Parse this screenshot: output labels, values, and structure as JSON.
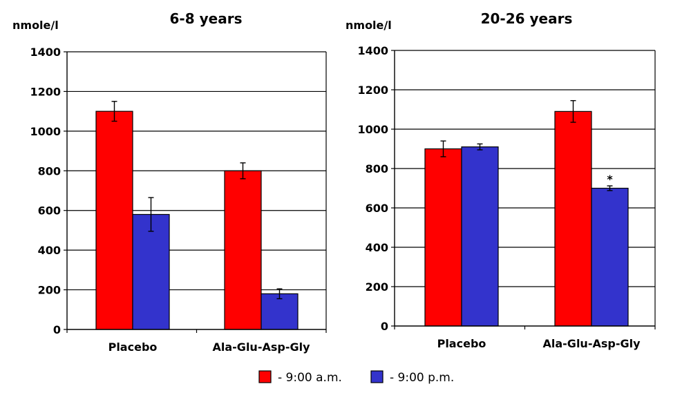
{
  "legend": {
    "items": [
      {
        "label": "- 9:00 a.m.",
        "color": "#ff0000"
      },
      {
        "label": "- 9:00 p.m.",
        "color": "#3333cc"
      }
    ]
  },
  "chart_data": [
    {
      "type": "bar",
      "title": "6-8 years",
      "ylabel": "nmole/l",
      "xlabel": "",
      "categories": [
        "Placebo",
        "Ala-Glu-Asp-Gly"
      ],
      "ylim": [
        0,
        1400
      ],
      "yticks": [
        0,
        200,
        400,
        600,
        800,
        1000,
        1200,
        1400
      ],
      "grid": true,
      "series": [
        {
          "name": "- 9:00 a.m.",
          "color": "#ff0000",
          "values": [
            1100,
            800
          ],
          "errors": [
            50,
            40
          ]
        },
        {
          "name": "- 9:00 p.m.",
          "color": "#3333cc",
          "values": [
            580,
            180
          ],
          "errors": [
            85,
            25
          ]
        }
      ],
      "annotations": []
    },
    {
      "type": "bar",
      "title": "20-26 years",
      "ylabel": "nmole/l",
      "xlabel": "",
      "categories": [
        "Placebo",
        "Ala-Glu-Asp-Gly"
      ],
      "ylim": [
        0,
        1400
      ],
      "yticks": [
        0,
        200,
        400,
        600,
        800,
        1000,
        1200,
        1400
      ],
      "grid": true,
      "series": [
        {
          "name": "- 9:00 a.m.",
          "color": "#ff0000",
          "values": [
            900,
            1090
          ],
          "errors": [
            40,
            55
          ]
        },
        {
          "name": "- 9:00 p.m.",
          "color": "#3333cc",
          "values": [
            910,
            700
          ],
          "errors": [
            15,
            12
          ]
        }
      ],
      "annotations": [
        {
          "text": "*",
          "category": 1,
          "series": 1
        }
      ]
    }
  ]
}
